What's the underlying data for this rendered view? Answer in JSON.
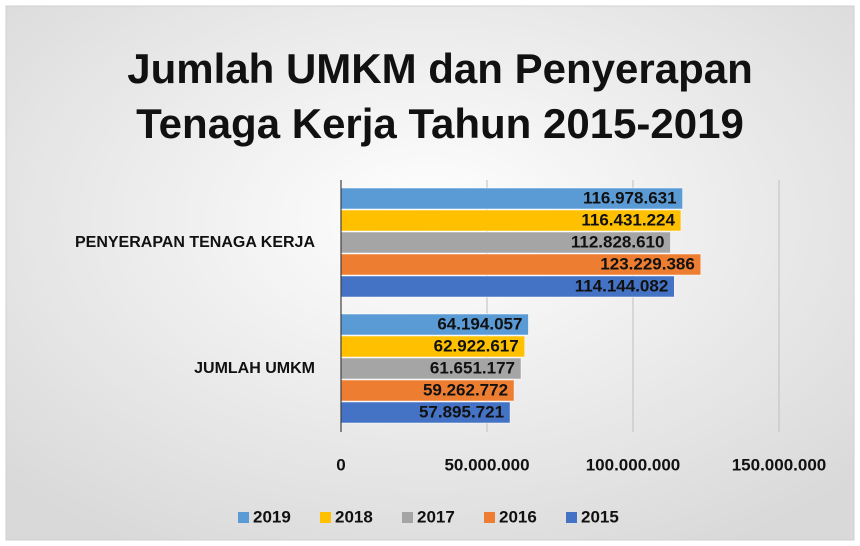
{
  "chart_data": {
    "type": "bar",
    "orientation": "horizontal",
    "title": [
      "Jumlah UMKM dan Penyerapan",
      "Tenaga Kerja Tahun 2015-2019"
    ],
    "categories": [
      "PENYERAPAN TENAGA KERJA",
      "JUMLAH UMKM"
    ],
    "series": [
      {
        "name": "2019",
        "color": "#5b9bd5",
        "values": [
          116978631,
          64194057
        ],
        "value_labels": [
          "116.978.631",
          "64.194.057"
        ]
      },
      {
        "name": "2018",
        "color": "#ffc000",
        "values": [
          116431224,
          62922617
        ],
        "value_labels": [
          "116.431.224",
          "62.922.617"
        ]
      },
      {
        "name": "2017",
        "color": "#a5a5a5",
        "values": [
          112828610,
          61651177
        ],
        "value_labels": [
          "112.828.610",
          "61.651.177"
        ]
      },
      {
        "name": "2016",
        "color": "#ed7d31",
        "values": [
          123229386,
          59262772
        ],
        "value_labels": [
          "123.229.386",
          "59.262.772"
        ]
      },
      {
        "name": "2015",
        "color": "#4472c4",
        "values": [
          114144082,
          57895721
        ],
        "value_labels": [
          "114.144.082",
          "57.895.721"
        ]
      }
    ],
    "xlim": [
      0,
      150000000
    ],
    "xticks": [
      0,
      {
        "value": 50000000,
        "label": "50.000.000"
      },
      {
        "value": 100000000,
        "label": "100.000.000"
      },
      {
        "value": 150000000,
        "label": "150.000.000"
      }
    ],
    "grid": true,
    "legend": "bottom"
  }
}
